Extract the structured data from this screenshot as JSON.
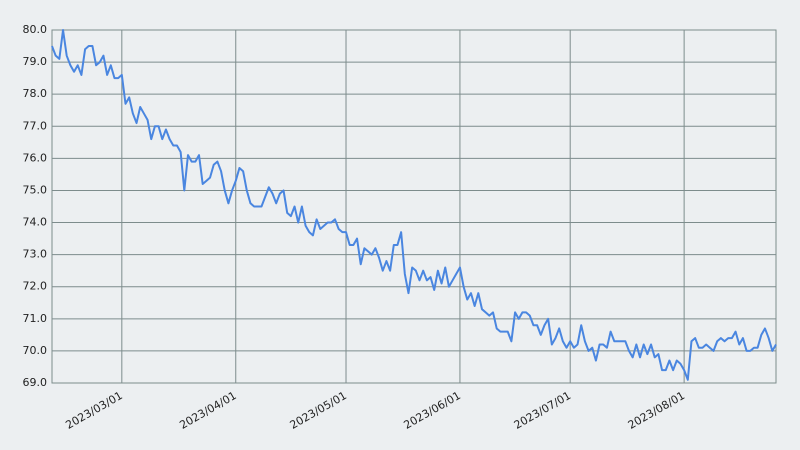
{
  "chart_data": {
    "type": "line",
    "x": [
      "2023/02/10",
      "2023/02/11",
      "2023/02/12",
      "2023/02/13",
      "2023/02/14",
      "2023/02/15",
      "2023/02/16",
      "2023/02/17",
      "2023/02/18",
      "2023/02/19",
      "2023/02/20",
      "2023/02/21",
      "2023/02/22",
      "2023/02/23",
      "2023/02/24",
      "2023/02/25",
      "2023/02/26",
      "2023/02/27",
      "2023/02/28",
      "2023/03/01",
      "2023/03/02",
      "2023/03/03",
      "2023/03/04",
      "2023/03/05",
      "2023/03/06",
      "2023/03/07",
      "2023/03/08",
      "2023/03/09",
      "2023/03/10",
      "2023/03/11",
      "2023/03/12",
      "2023/03/13",
      "2023/03/14",
      "2023/03/15",
      "2023/03/16",
      "2023/03/17",
      "2023/03/18",
      "2023/03/19",
      "2023/03/20",
      "2023/03/21",
      "2023/03/22",
      "2023/03/23",
      "2023/03/24",
      "2023/03/25",
      "2023/03/26",
      "2023/03/27",
      "2023/03/28",
      "2023/03/29",
      "2023/03/30",
      "2023/03/31",
      "2023/04/01",
      "2023/04/02",
      "2023/04/03",
      "2023/04/04",
      "2023/04/05",
      "2023/04/06",
      "2023/04/07",
      "2023/04/08",
      "2023/04/09",
      "2023/04/10",
      "2023/04/11",
      "2023/04/12",
      "2023/04/13",
      "2023/04/14",
      "2023/04/15",
      "2023/04/16",
      "2023/04/17",
      "2023/04/18",
      "2023/04/19",
      "2023/04/20",
      "2023/04/21",
      "2023/04/22",
      "2023/04/23",
      "2023/04/24",
      "2023/04/25",
      "2023/04/26",
      "2023/04/27",
      "2023/04/28",
      "2023/04/29",
      "2023/04/30",
      "2023/05/01",
      "2023/05/02",
      "2023/05/03",
      "2023/05/04",
      "2023/05/05",
      "2023/05/06",
      "2023/05/07",
      "2023/05/08",
      "2023/05/09",
      "2023/05/10",
      "2023/05/11",
      "2023/05/12",
      "2023/05/13",
      "2023/05/14",
      "2023/05/15",
      "2023/05/16",
      "2023/05/17",
      "2023/05/18",
      "2023/05/19",
      "2023/05/20",
      "2023/05/21",
      "2023/05/22",
      "2023/05/23",
      "2023/05/24",
      "2023/05/25",
      "2023/05/26",
      "2023/05/27",
      "2023/05/28",
      "2023/05/29",
      "2023/05/30",
      "2023/05/31",
      "2023/06/01",
      "2023/06/02",
      "2023/06/03",
      "2023/06/04",
      "2023/06/05",
      "2023/06/06",
      "2023/06/07",
      "2023/06/08",
      "2023/06/09",
      "2023/06/10",
      "2023/06/11",
      "2023/06/12",
      "2023/06/13",
      "2023/06/14",
      "2023/06/15",
      "2023/06/16",
      "2023/06/17",
      "2023/06/18",
      "2023/06/19",
      "2023/06/20",
      "2023/06/21",
      "2023/06/22",
      "2023/06/23",
      "2023/06/24",
      "2023/06/25",
      "2023/06/26",
      "2023/06/27",
      "2023/06/28",
      "2023/06/29",
      "2023/06/30",
      "2023/07/01",
      "2023/07/02",
      "2023/07/03",
      "2023/07/04",
      "2023/07/05",
      "2023/07/06",
      "2023/07/07",
      "2023/07/08",
      "2023/07/09",
      "2023/07/10",
      "2023/07/11",
      "2023/07/12",
      "2023/07/13",
      "2023/07/14",
      "2023/07/15",
      "2023/07/16",
      "2023/07/17",
      "2023/07/18",
      "2023/07/19",
      "2023/07/20",
      "2023/07/21",
      "2023/07/22",
      "2023/07/23",
      "2023/07/24",
      "2023/07/25",
      "2023/07/26",
      "2023/07/27",
      "2023/07/28",
      "2023/07/29",
      "2023/07/30",
      "2023/07/31",
      "2023/08/01",
      "2023/08/02",
      "2023/08/03",
      "2023/08/04",
      "2023/08/05",
      "2023/08/06",
      "2023/08/07",
      "2023/08/08",
      "2023/08/09",
      "2023/08/10",
      "2023/08/11",
      "2023/08/12",
      "2023/08/13",
      "2023/08/14",
      "2023/08/15",
      "2023/08/16",
      "2023/08/17",
      "2023/08/18",
      "2023/08/19",
      "2023/08/20",
      "2023/08/21",
      "2023/08/22",
      "2023/08/23",
      "2023/08/24",
      "2023/08/25",
      "2023/08/26"
    ],
    "series": [
      {
        "color": "#4a86e0",
        "values": [
          79.5,
          79.2,
          79.1,
          80.0,
          79.2,
          78.9,
          78.7,
          78.9,
          78.6,
          79.4,
          79.5,
          79.5,
          78.9,
          79.0,
          79.2,
          78.6,
          78.9,
          78.5,
          78.5,
          78.6,
          77.7,
          77.9,
          77.4,
          77.1,
          77.6,
          77.4,
          77.2,
          76.6,
          77.0,
          77.0,
          76.6,
          76.9,
          76.6,
          76.4,
          76.4,
          76.2,
          75.0,
          76.1,
          75.9,
          75.9,
          76.1,
          75.2,
          75.3,
          75.4,
          75.8,
          75.9,
          75.6,
          75.0,
          74.6,
          75.0,
          75.3,
          75.7,
          75.6,
          75.0,
          74.6,
          74.5,
          74.5,
          74.5,
          74.8,
          75.1,
          74.9,
          74.6,
          74.9,
          75.0,
          74.3,
          74.2,
          74.5,
          74.0,
          74.5,
          73.9,
          73.7,
          73.6,
          74.1,
          73.8,
          73.9,
          74.0,
          74.0,
          74.1,
          73.8,
          73.7,
          73.7,
          73.3,
          73.3,
          73.5,
          72.7,
          73.2,
          73.1,
          73.0,
          73.2,
          72.9,
          72.5,
          72.8,
          72.5,
          73.3,
          73.3,
          73.7,
          72.4,
          71.8,
          72.6,
          72.5,
          72.2,
          72.5,
          72.2,
          72.3,
          71.9,
          72.5,
          72.1,
          72.6,
          72.0,
          72.2,
          72.4,
          72.6,
          72.0,
          71.6,
          71.8,
          71.4,
          71.8,
          71.3,
          71.2,
          71.1,
          71.2,
          70.7,
          70.6,
          70.6,
          70.6,
          70.3,
          71.2,
          71.0,
          71.2,
          71.2,
          71.1,
          70.8,
          70.8,
          70.5,
          70.8,
          71.0,
          70.2,
          70.4,
          70.7,
          70.3,
          70.1,
          70.3,
          70.1,
          70.2,
          70.8,
          70.3,
          70.0,
          70.1,
          69.7,
          70.2,
          70.2,
          70.1,
          70.6,
          70.3,
          70.3,
          70.3,
          70.3,
          70.0,
          69.8,
          70.2,
          69.8,
          70.2,
          69.9,
          70.2,
          69.8,
          69.9,
          69.4,
          69.4,
          69.7,
          69.4,
          69.7,
          69.6,
          69.4,
          69.1,
          70.3,
          70.4,
          70.1,
          70.1,
          70.2,
          70.1,
          70.0,
          70.3,
          70.4,
          70.3,
          70.4,
          70.4,
          70.6,
          70.2,
          70.4,
          70.0,
          70.0,
          70.1,
          70.1,
          70.5,
          70.7,
          70.4,
          70.0,
          70.2
        ]
      }
    ],
    "xlim": [
      "2023/02/10",
      "2023/08/26"
    ],
    "xticks": [
      "2023/03/01",
      "2023/04/01",
      "2023/05/01",
      "2023/06/01",
      "2023/07/01",
      "2023/08/01"
    ],
    "ylim": [
      69,
      80
    ],
    "yticks": [
      {
        "value": 69,
        "label": "69.0"
      },
      {
        "value": 70,
        "label": "70.0"
      },
      {
        "value": 71,
        "label": "71.0"
      },
      {
        "value": 72,
        "label": "72.0"
      },
      {
        "value": 73,
        "label": "73.0"
      },
      {
        "value": 74,
        "label": "74.0"
      },
      {
        "value": 75,
        "label": "75.0"
      },
      {
        "value": 76,
        "label": "76.0"
      },
      {
        "value": 77,
        "label": "77.0"
      },
      {
        "value": 78,
        "label": "78.0"
      },
      {
        "value": 79,
        "label": "79.0"
      },
      {
        "value": 80,
        "label": "80.0"
      }
    ],
    "grid": true
  }
}
